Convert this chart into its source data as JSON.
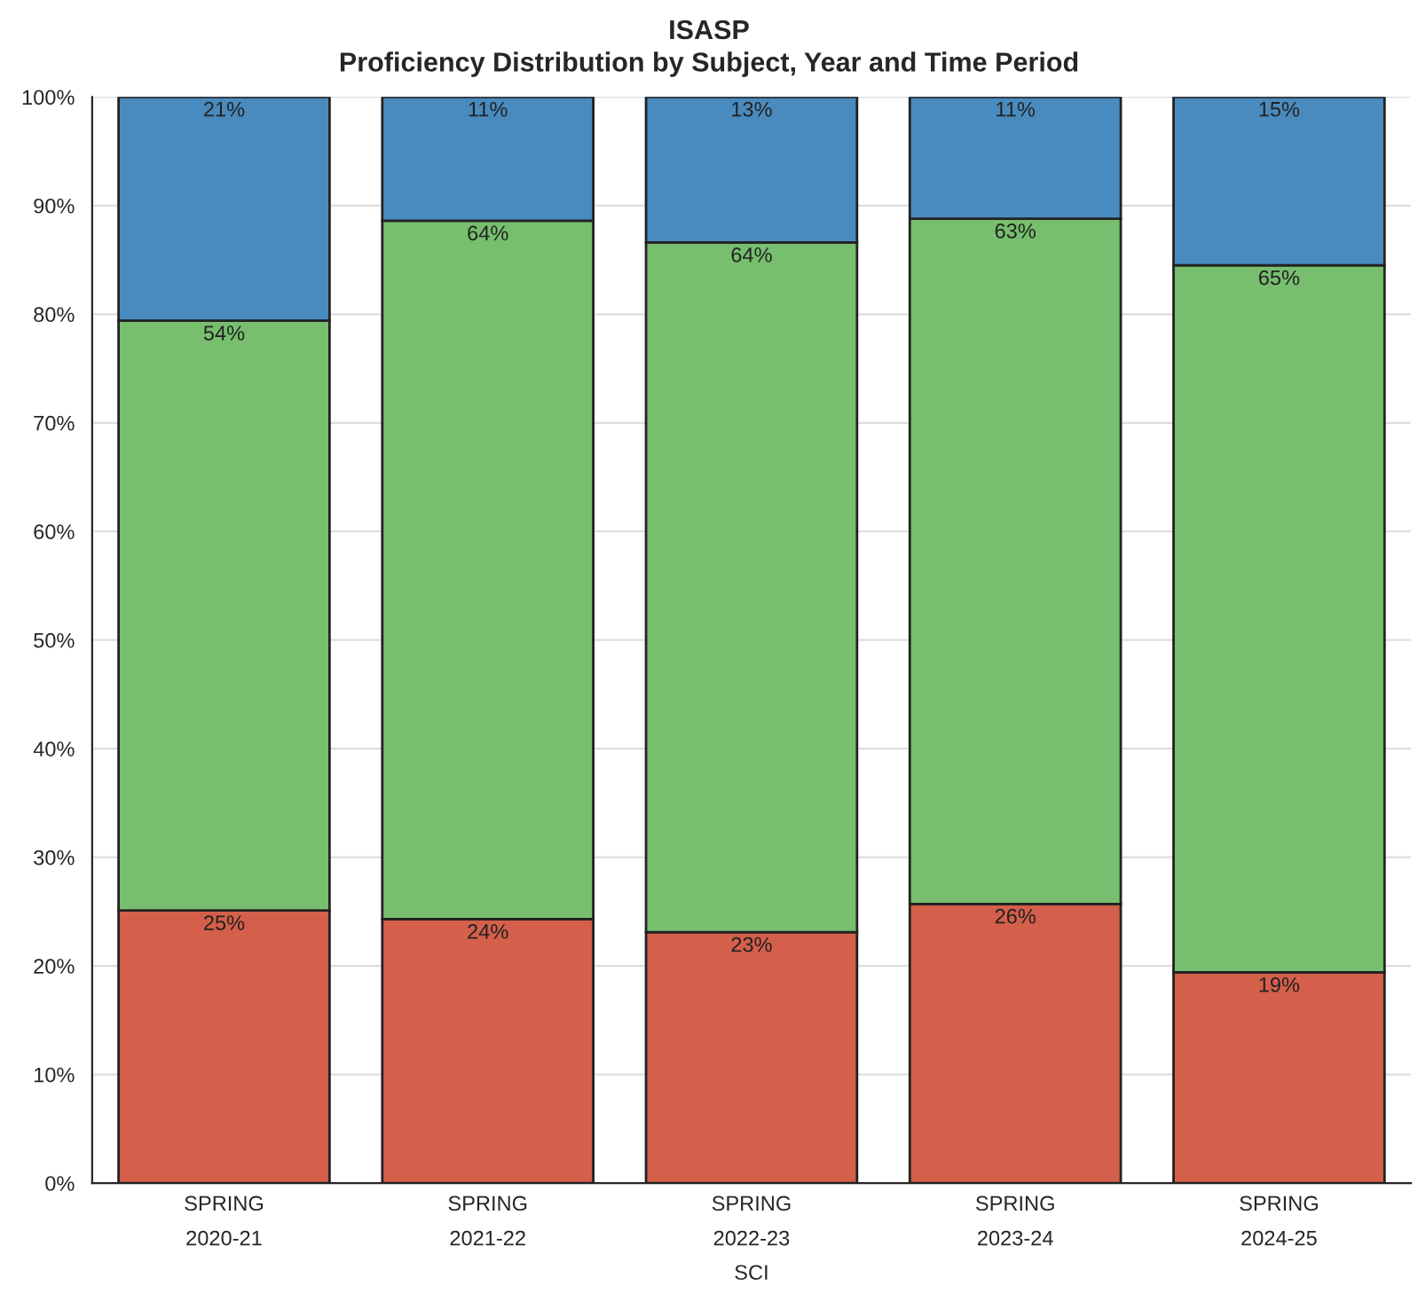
{
  "chart_data": {
    "type": "bar",
    "stacked": true,
    "title": "ISASP",
    "subtitle": "Proficiency Distribution by Subject, Year and Time Period",
    "categories": [
      "SPRING\n2020-21",
      "SPRING\n2021-22",
      "SPRING\n2022-23",
      "SPRING\n2023-24",
      "SPRING\n2024-25"
    ],
    "xlabel": "SCI",
    "series": [
      {
        "color": "#d45f4a",
        "values": [
          25.1,
          24.3,
          23.1,
          25.7,
          19.4
        ],
        "value_labels": [
          "25%",
          "24%",
          "23%",
          "26%",
          "19%"
        ]
      },
      {
        "color": "#77bf6e",
        "values": [
          54.3,
          64.3,
          63.5,
          63.1,
          65.1
        ],
        "value_labels": [
          "54%",
          "64%",
          "64%",
          "63%",
          "65%"
        ]
      },
      {
        "color": "#4a8bbf",
        "values": [
          20.6,
          11.4,
          13.4,
          11.2,
          15.5
        ],
        "value_labels": [
          "21%",
          "11%",
          "13%",
          "11%",
          "15%"
        ]
      }
    ],
    "ylim": [
      0,
      100
    ],
    "yticks": [
      {
        "value": 0,
        "label": "0%"
      },
      {
        "value": 10,
        "label": "10%"
      },
      {
        "value": 20,
        "label": "20%"
      },
      {
        "value": 30,
        "label": "30%"
      },
      {
        "value": 40,
        "label": "40%"
      },
      {
        "value": 50,
        "label": "50%"
      },
      {
        "value": 60,
        "label": "60%"
      },
      {
        "value": 70,
        "label": "70%"
      },
      {
        "value": 80,
        "label": "80%"
      },
      {
        "value": 90,
        "label": "90%"
      },
      {
        "value": 100,
        "label": "100%"
      }
    ],
    "grid": "y",
    "legend": false
  }
}
